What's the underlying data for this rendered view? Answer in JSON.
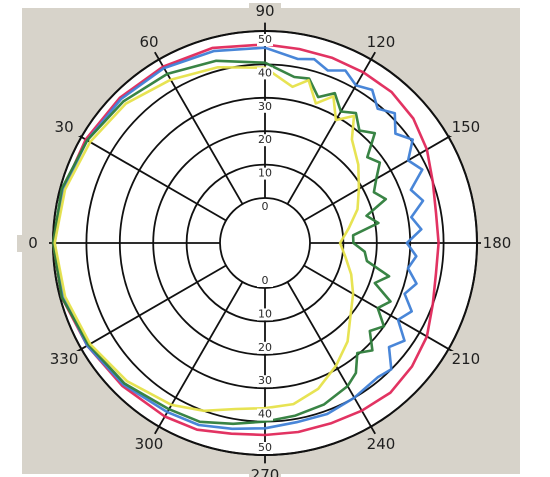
{
  "chart_data": {
    "type": "polar",
    "title": "",
    "background_color": "#d7d3ca",
    "grid_color": "#111111",
    "radial_ticks": [
      "0",
      "10",
      "20",
      "30",
      "40",
      "50"
    ],
    "radial_range": [
      0,
      50
    ],
    "angle_labels": [
      "0",
      "30",
      "60",
      "90",
      "120",
      "150",
      "180",
      "210",
      "240",
      "270",
      "300",
      "330"
    ],
    "angle_ticks_deg": [
      0,
      30,
      60,
      90,
      120,
      150,
      180,
      210,
      240,
      270,
      300,
      330
    ],
    "angle_direction": "0 on the left, 90 at the top, 180 on the right, 270 at the bottom",
    "series": [
      {
        "color": "#e0285a",
        "points": [
          [
            0,
            50
          ],
          [
            15,
            49
          ],
          [
            30,
            48.5
          ],
          [
            45,
            48
          ],
          [
            60,
            47.5
          ],
          [
            75,
            47
          ],
          [
            90,
            46
          ],
          [
            100,
            45.5
          ],
          [
            110,
            45.5
          ],
          [
            120,
            45.5
          ],
          [
            130,
            45.5
          ],
          [
            140,
            44.5
          ],
          [
            150,
            42.5
          ],
          [
            160,
            40
          ],
          [
            170,
            38.5
          ],
          [
            180,
            38.5
          ],
          [
            190,
            38.5
          ],
          [
            200,
            40
          ],
          [
            210,
            42.5
          ],
          [
            220,
            44
          ],
          [
            230,
            45
          ],
          [
            240,
            44.5
          ],
          [
            250,
            44
          ],
          [
            260,
            44
          ],
          [
            270,
            44
          ],
          [
            280,
            44.5
          ],
          [
            290,
            46
          ],
          [
            300,
            46.5
          ],
          [
            315,
            47
          ],
          [
            330,
            48
          ],
          [
            345,
            49.5
          ],
          [
            360,
            50
          ]
        ]
      },
      {
        "color": "#3f7fd6",
        "points": [
          [
            0,
            49.5
          ],
          [
            15,
            49
          ],
          [
            30,
            48
          ],
          [
            45,
            47.5
          ],
          [
            60,
            47
          ],
          [
            75,
            46
          ],
          [
            90,
            45
          ],
          [
            100,
            42.5
          ],
          [
            105,
            43.5
          ],
          [
            110,
            41.5
          ],
          [
            115,
            43.5
          ],
          [
            120,
            41
          ],
          [
            125,
            42.5
          ],
          [
            130,
            39
          ],
          [
            135,
            41.5
          ],
          [
            140,
            37.5
          ],
          [
            145,
            40.5
          ],
          [
            150,
            36
          ],
          [
            155,
            38.5
          ],
          [
            160,
            33
          ],
          [
            165,
            35.5
          ],
          [
            170,
            31
          ],
          [
            175,
            33.5
          ],
          [
            180,
            29
          ],
          [
            185,
            32
          ],
          [
            190,
            30
          ],
          [
            195,
            33.5
          ],
          [
            200,
            31
          ],
          [
            205,
            35
          ],
          [
            210,
            32.5
          ],
          [
            215,
            37.5
          ],
          [
            220,
            35
          ],
          [
            225,
            40
          ],
          [
            230,
            39
          ],
          [
            240,
            40
          ],
          [
            250,
            41
          ],
          [
            260,
            41
          ],
          [
            270,
            42
          ],
          [
            280,
            43
          ],
          [
            290,
            44.5
          ],
          [
            300,
            45
          ],
          [
            315,
            46.5
          ],
          [
            330,
            48
          ],
          [
            345,
            49
          ],
          [
            360,
            49.5
          ]
        ]
      },
      {
        "color": "#2e7d3b",
        "points": [
          [
            0,
            50
          ],
          [
            15,
            49.5
          ],
          [
            30,
            48
          ],
          [
            45,
            46.5
          ],
          [
            60,
            45
          ],
          [
            75,
            43
          ],
          [
            90,
            40.5
          ],
          [
            100,
            37
          ],
          [
            105,
            37.5
          ],
          [
            110,
            33
          ],
          [
            115,
            36
          ],
          [
            120,
            32
          ],
          [
            125,
            34
          ],
          [
            130,
            30.5
          ],
          [
            135,
            33
          ],
          [
            140,
            26.5
          ],
          [
            145,
            28.5
          ],
          [
            150,
            25
          ],
          [
            155,
            22.5
          ],
          [
            160,
            25
          ],
          [
            165,
            18
          ],
          [
            170,
            21
          ],
          [
            175,
            13
          ],
          [
            180,
            13
          ],
          [
            185,
            16.5
          ],
          [
            190,
            17.5
          ],
          [
            195,
            25
          ],
          [
            200,
            21.5
          ],
          [
            205,
            28
          ],
          [
            210,
            25.5
          ],
          [
            215,
            30
          ],
          [
            220,
            27.5
          ],
          [
            225,
            32
          ],
          [
            230,
            29.5
          ],
          [
            235,
            34
          ],
          [
            240,
            36
          ],
          [
            250,
            38
          ],
          [
            260,
            39
          ],
          [
            270,
            40
          ],
          [
            280,
            41.5
          ],
          [
            290,
            43.5
          ],
          [
            300,
            44
          ],
          [
            315,
            46
          ],
          [
            330,
            47.5
          ],
          [
            345,
            49.5
          ],
          [
            360,
            50
          ]
        ]
      },
      {
        "color": "#e6e24a",
        "points": [
          [
            0,
            49.5
          ],
          [
            15,
            48.5
          ],
          [
            30,
            47
          ],
          [
            45,
            45.5
          ],
          [
            60,
            43
          ],
          [
            75,
            41
          ],
          [
            90,
            39
          ],
          [
            100,
            34
          ],
          [
            105,
            37
          ],
          [
            110,
            31
          ],
          [
            115,
            35
          ],
          [
            120,
            29
          ],
          [
            125,
            33
          ],
          [
            130,
            27
          ],
          [
            140,
            23
          ],
          [
            150,
            19
          ],
          [
            160,
            16
          ],
          [
            170,
            12
          ],
          [
            180,
            9
          ],
          [
            190,
            11
          ],
          [
            200,
            14
          ],
          [
            210,
            17
          ],
          [
            220,
            20
          ],
          [
            230,
            25
          ],
          [
            240,
            29
          ],
          [
            250,
            33
          ],
          [
            260,
            35.5
          ],
          [
            270,
            36
          ],
          [
            280,
            37
          ],
          [
            290,
            40
          ],
          [
            300,
            42.5
          ],
          [
            315,
            45
          ],
          [
            330,
            47
          ],
          [
            345,
            48.5
          ],
          [
            360,
            49.5
          ]
        ]
      }
    ]
  }
}
